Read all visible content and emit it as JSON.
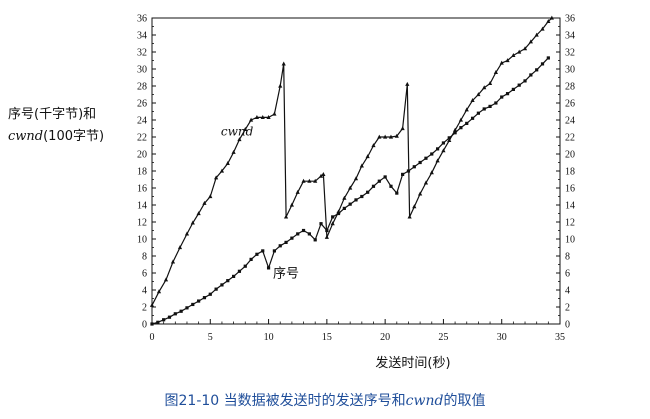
{
  "chart_data": {
    "type": "line",
    "xlabel": "发送时间(秒)",
    "ylabel_line1": "序号(千字节)和",
    "ylabel_line2_italic": "cwnd",
    "ylabel_line2_rest": "(100字节)",
    "xlim": [
      0,
      35
    ],
    "ylim": [
      0,
      36
    ],
    "x_ticks": [
      0,
      5,
      10,
      15,
      20,
      25,
      30,
      35
    ],
    "y_ticks": [
      0,
      2,
      4,
      6,
      8,
      10,
      12,
      14,
      16,
      18,
      20,
      22,
      24,
      26,
      28,
      30,
      32,
      34,
      36
    ],
    "grid": false,
    "annotations": [
      {
        "text": "cwnd",
        "italic": true,
        "x": 7.3,
        "y": 22.2
      },
      {
        "text": "序号",
        "italic": false,
        "x": 11.5,
        "y": 5.5
      }
    ],
    "series": [
      {
        "name": "序号",
        "marker": "square",
        "x": [
          0,
          0.5,
          1,
          1.5,
          2,
          2.5,
          3,
          3.5,
          4,
          4.5,
          5,
          5.5,
          6,
          6.5,
          7,
          7.5,
          8,
          8.5,
          9,
          9.5,
          10,
          10.5,
          11,
          11.5,
          12,
          12.5,
          13,
          13.5,
          14,
          14.5,
          15,
          15.5,
          16,
          16.5,
          17,
          17.5,
          18,
          18.5,
          19,
          19.5,
          20,
          20.5,
          21,
          21.5,
          22,
          22.5,
          23,
          23.5,
          24,
          24.5,
          25,
          25.5,
          26,
          26.5,
          27,
          27.5,
          28,
          28.5,
          29,
          29.5,
          30,
          30.5,
          31,
          31.5,
          32,
          32.5,
          33,
          33.5,
          34
        ],
        "y": [
          0,
          0.2,
          0.5,
          0.8,
          1.2,
          1.5,
          1.9,
          2.3,
          2.7,
          3.1,
          3.5,
          4.1,
          4.6,
          5.1,
          5.6,
          6.2,
          6.8,
          7.6,
          8.2,
          8.6,
          6.6,
          8.6,
          9.2,
          9.6,
          10.1,
          10.6,
          11.0,
          10.6,
          9.9,
          11.8,
          11.0,
          12.6,
          13.0,
          13.6,
          14.1,
          14.6,
          15.0,
          15.5,
          16.2,
          16.8,
          17.3,
          16.2,
          15.4,
          17.6,
          18.0,
          18.5,
          19.0,
          19.5,
          20.0,
          20.6,
          21.3,
          21.9,
          22.5,
          23.1,
          23.6,
          24.2,
          24.8,
          25.3,
          25.6,
          26.0,
          26.7,
          27.1,
          27.6,
          28.1,
          28.6,
          29.3,
          29.9,
          30.6,
          31.3
        ]
      },
      {
        "name": "cwnd",
        "marker": "triangle",
        "x": [
          0,
          0.6,
          1.2,
          1.8,
          2.4,
          3.0,
          3.5,
          4.0,
          4.5,
          5.0,
          5.5,
          6.0,
          6.5,
          7.0,
          7.5,
          8.0,
          8.5,
          9.0,
          9.5,
          10.0,
          10.5,
          11.0,
          11.3,
          11.5,
          12.0,
          12.5,
          13.0,
          13.5,
          14.0,
          14.5,
          14.7,
          15.0,
          15.5,
          16.0,
          16.5,
          17.0,
          17.5,
          18.0,
          18.5,
          19.0,
          19.5,
          20.0,
          20.5,
          21.0,
          21.5,
          21.9,
          22.1,
          22.5,
          23.0,
          23.5,
          24.0,
          24.5,
          25.0,
          25.5,
          26.0,
          26.5,
          27.0,
          27.5,
          28.0,
          28.5,
          29.0,
          29.5,
          30.0,
          30.5,
          31.0,
          31.5,
          32.0,
          32.5,
          33.0,
          33.5,
          34.0,
          34.3
        ],
        "y": [
          2.2,
          3.8,
          5.2,
          7.3,
          9.0,
          10.6,
          11.9,
          13.0,
          14.2,
          15.0,
          17.2,
          18.0,
          18.9,
          20.2,
          21.7,
          22.9,
          24.0,
          24.3,
          24.3,
          24.3,
          24.7,
          28.0,
          30.6,
          12.6,
          14.0,
          15.5,
          16.8,
          16.8,
          16.8,
          17.4,
          17.6,
          10.2,
          11.8,
          13.2,
          14.8,
          16.0,
          17.1,
          18.6,
          19.7,
          21.0,
          22.0,
          22.0,
          22.0,
          22.1,
          23.0,
          28.2,
          12.6,
          13.8,
          15.3,
          16.6,
          17.8,
          19.2,
          20.4,
          21.6,
          22.8,
          24.0,
          25.2,
          26.3,
          27.0,
          27.8,
          28.3,
          29.6,
          30.7,
          31.0,
          31.6,
          32.0,
          32.4,
          33.2,
          34.0,
          34.7,
          35.6,
          36.0
        ]
      }
    ]
  },
  "caption": {
    "prefix": "图21-10   当数据被发送时的发送序号和",
    "italic": "cwnd",
    "suffix": "的取值"
  }
}
